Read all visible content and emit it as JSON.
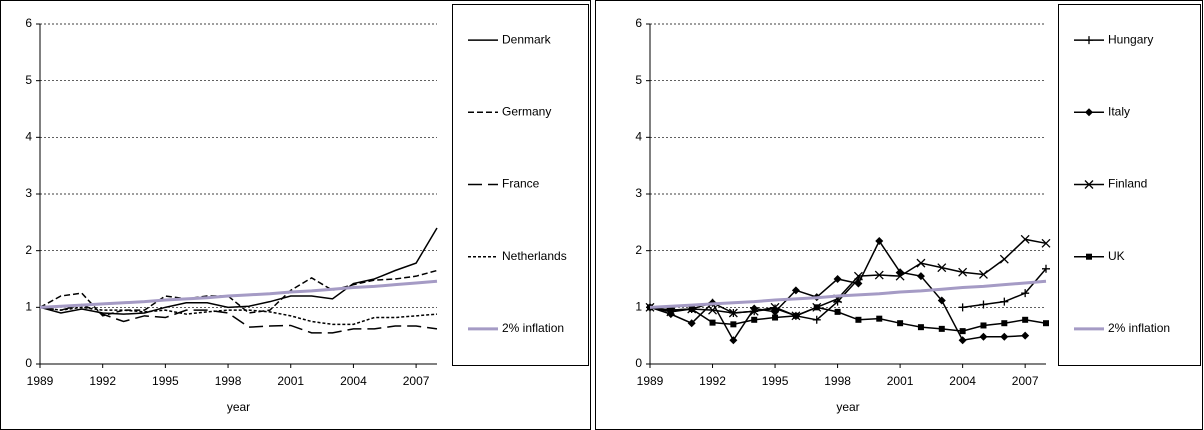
{
  "chart_data": [
    {
      "type": "line",
      "xlabel": "year",
      "x": [
        1989,
        1990,
        1991,
        1992,
        1993,
        1994,
        1995,
        1996,
        1997,
        1998,
        1999,
        2000,
        2001,
        2002,
        2003,
        2004,
        2005,
        2006,
        2007,
        2008
      ],
      "xlim": [
        1989,
        2008
      ],
      "xticks": [
        1989,
        1992,
        1995,
        1998,
        2001,
        2004,
        2007
      ],
      "ylim": [
        0,
        6
      ],
      "yticks": [
        0,
        1,
        2,
        3,
        4,
        5,
        6
      ],
      "grid": true,
      "series": [
        {
          "name": "Denmark",
          "color": "#000000",
          "dash": "solid",
          "marker": "none",
          "values": [
            1.0,
            0.9,
            0.97,
            0.9,
            0.88,
            0.9,
            1.0,
            1.08,
            1.08,
            1.0,
            1.02,
            1.1,
            1.2,
            1.2,
            1.15,
            1.42,
            1.5,
            1.65,
            1.78,
            2.4
          ]
        },
        {
          "name": "Germany",
          "color": "#000000",
          "dash": "short",
          "marker": "none",
          "values": [
            1.0,
            1.2,
            1.25,
            0.85,
            0.95,
            0.95,
            1.2,
            1.15,
            1.2,
            1.2,
            0.9,
            0.95,
            1.3,
            1.52,
            1.3,
            1.4,
            1.48,
            1.5,
            1.55,
            1.65
          ]
        },
        {
          "name": "France",
          "color": "#000000",
          "dash": "long",
          "marker": "none",
          "values": [
            1.0,
            0.95,
            1.05,
            0.88,
            0.75,
            0.85,
            0.82,
            0.95,
            0.95,
            0.9,
            0.65,
            0.67,
            0.68,
            0.55,
            0.55,
            0.62,
            0.62,
            0.67,
            0.67,
            0.62
          ]
        },
        {
          "name": "Netherlands",
          "color": "#000000",
          "dash": "fine",
          "marker": "none",
          "values": [
            1.0,
            0.95,
            1.0,
            0.95,
            0.95,
            0.92,
            0.95,
            0.88,
            0.92,
            0.95,
            0.95,
            0.92,
            0.85,
            0.75,
            0.7,
            0.7,
            0.82,
            0.82,
            0.85,
            0.88
          ]
        },
        {
          "name": "2% inflation",
          "color": "#a59bc5",
          "dash": "solid",
          "marker": "none",
          "width": 3,
          "values": [
            1.0,
            1.02,
            1.04,
            1.06,
            1.08,
            1.1,
            1.13,
            1.15,
            1.17,
            1.2,
            1.22,
            1.24,
            1.27,
            1.29,
            1.32,
            1.35,
            1.37,
            1.4,
            1.43,
            1.46
          ]
        }
      ]
    },
    {
      "type": "line",
      "xlabel": "year",
      "x": [
        1989,
        1990,
        1991,
        1992,
        1993,
        1994,
        1995,
        1996,
        1997,
        1998,
        1999,
        2000,
        2001,
        2002,
        2003,
        2004,
        2005,
        2006,
        2007,
        2008
      ],
      "xlim": [
        1989,
        2008
      ],
      "xticks": [
        1989,
        1992,
        1995,
        1998,
        2001,
        2004,
        2007
      ],
      "ylim": [
        0,
        6
      ],
      "yticks": [
        0,
        1,
        2,
        3,
        4,
        5,
        6
      ],
      "grid": true,
      "series": [
        {
          "name": "Hungary",
          "color": "#000000",
          "dash": "solid",
          "marker": "plus",
          "values": [
            1.0,
            0.95,
            0.97,
            1.08,
            0.9,
            0.93,
            0.98,
            0.85,
            0.78,
            1.1,
            1.5,
            null,
            null,
            null,
            null,
            1.0,
            1.05,
            1.1,
            1.25,
            1.68
          ]
        },
        {
          "name": "Italy",
          "color": "#000000",
          "dash": "solid",
          "marker": "diamond",
          "values": [
            1.0,
            0.88,
            0.72,
            1.08,
            0.42,
            0.98,
            0.92,
            1.3,
            1.18,
            1.5,
            1.42,
            2.17,
            1.62,
            1.55,
            1.12,
            0.42,
            0.48,
            0.48,
            0.5,
            null
          ]
        },
        {
          "name": "Finland",
          "color": "#000000",
          "dash": "solid",
          "marker": "x",
          "values": [
            1.0,
            0.92,
            0.97,
            0.95,
            0.9,
            0.93,
            1.0,
            0.85,
            1.0,
            1.15,
            1.55,
            1.57,
            1.55,
            1.78,
            1.7,
            1.62,
            1.58,
            1.85,
            2.2,
            2.13
          ]
        },
        {
          "name": "UK",
          "color": "#000000",
          "dash": "solid",
          "marker": "square",
          "values": [
            1.0,
            0.95,
            0.97,
            0.73,
            0.7,
            0.78,
            0.82,
            0.85,
            1.0,
            0.92,
            0.78,
            0.8,
            0.72,
            0.65,
            0.62,
            0.58,
            0.68,
            0.72,
            0.78,
            0.72
          ]
        },
        {
          "name": "2% inflation",
          "color": "#a59bc5",
          "dash": "solid",
          "marker": "none",
          "width": 3,
          "values": [
            1.0,
            1.02,
            1.04,
            1.06,
            1.08,
            1.1,
            1.13,
            1.15,
            1.17,
            1.2,
            1.22,
            1.24,
            1.27,
            1.29,
            1.32,
            1.35,
            1.37,
            1.4,
            1.43,
            1.46
          ]
        }
      ]
    }
  ]
}
